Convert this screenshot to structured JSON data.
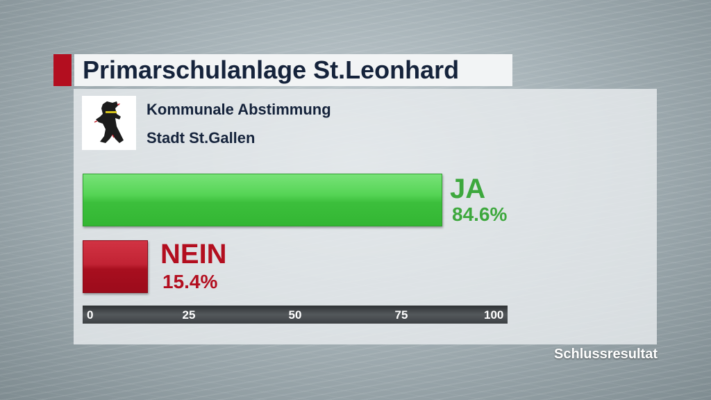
{
  "header": {
    "title": "Primarschulanlage St.Leonhard"
  },
  "subheader": {
    "line1": "Kommunale Abstimmung",
    "line2": "Stadt St.Gallen"
  },
  "emblem": {
    "icon": "bear-coat-of-arms-icon"
  },
  "colors": {
    "accent_red": "#b30e1f",
    "ja_green": "#3da83d",
    "nein_red": "#b30e1f",
    "title_text": "#15233b"
  },
  "chart_data": {
    "type": "bar",
    "orientation": "horizontal",
    "categories": [
      "JA",
      "NEIN"
    ],
    "values": [
      84.6,
      15.4
    ],
    "value_labels": [
      "84.6%",
      "15.4%"
    ],
    "xlim": [
      0,
      100
    ],
    "x_ticks": [
      "0",
      "25",
      "50",
      "75",
      "100"
    ],
    "grid": false
  },
  "footer": {
    "status": "Schlussresultat"
  }
}
